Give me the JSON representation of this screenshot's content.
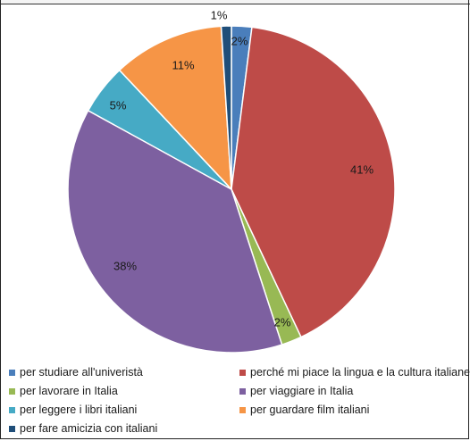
{
  "chart_data": {
    "type": "pie",
    "title": "",
    "slices": [
      {
        "label": "per studiare all'univeristà",
        "value": 2,
        "display": "2%",
        "color": "#4a7ebb"
      },
      {
        "label": "perché mi piace la lingua e la cultura italiane",
        "value": 41,
        "display": "41%",
        "color": "#be4b48"
      },
      {
        "label": "per lavorare in Italia",
        "value": 2,
        "display": "2%",
        "color": "#98b954"
      },
      {
        "label": "per viaggiare in Italia",
        "value": 38,
        "display": "38%",
        "color": "#7d60a0"
      },
      {
        "label": "per leggere i libri italiani",
        "value": 5,
        "display": "5%",
        "color": "#46aac5"
      },
      {
        "label": "per guardare film italiani",
        "value": 11,
        "display": "11%",
        "color": "#f69546"
      },
      {
        "label": "per fare amicizia con italiani",
        "value": 1,
        "display": "1%",
        "color": "#1f4e79"
      }
    ],
    "legend_position": "bottom"
  }
}
